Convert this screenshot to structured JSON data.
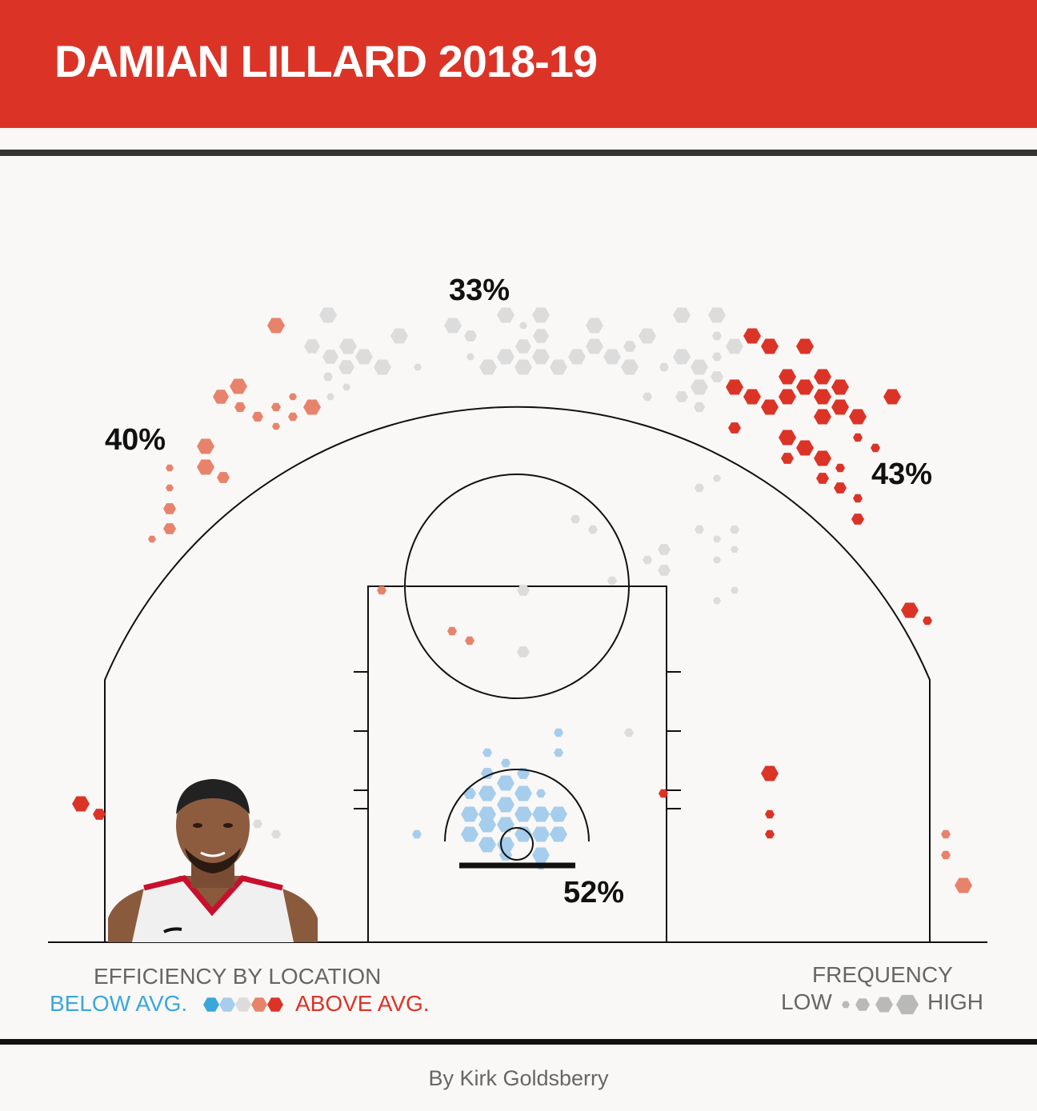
{
  "title": "DAMIAN LILLARD 2018-19",
  "credit": "By Kirk Goldsberry",
  "legend": {
    "efficiency_title": "EFFICIENCY BY LOCATION",
    "below": "BELOW AVG.",
    "above": "ABOVE AVG.",
    "frequency_title": "FREQUENCY",
    "low": "LOW",
    "high": "HIGH"
  },
  "colors": {
    "below2": "#3aa7dc",
    "below1": "#a6cdec",
    "avg": "#dcdcdc",
    "above1": "#e8836b",
    "above2": "#db3427",
    "banner": "#db3427"
  },
  "chart_data": {
    "type": "hexbin shot chart",
    "zones": [
      {
        "label": "40%",
        "zone": "left wing three"
      },
      {
        "label": "33%",
        "zone": "top of key three"
      },
      {
        "label": "43%",
        "zone": "right wing three"
      },
      {
        "label": "52%",
        "zone": "restricted area"
      }
    ],
    "efficiency_scale": [
      "below2",
      "below1",
      "avg",
      "above1",
      "above2"
    ],
    "frequency_scale": [
      "small",
      "medium",
      "large"
    ],
    "player_image": "player-headshot"
  }
}
